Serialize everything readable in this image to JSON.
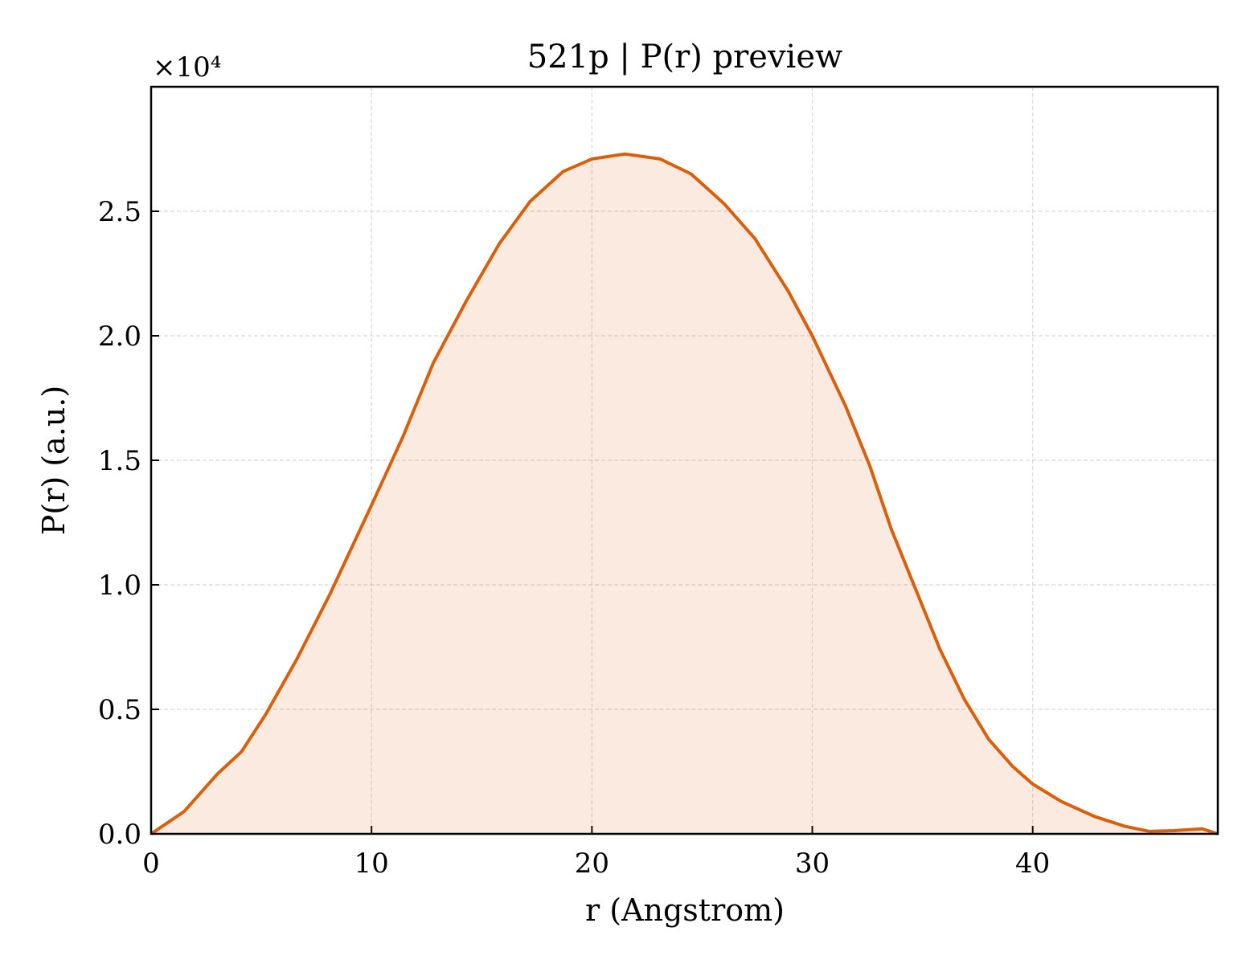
{
  "chart_data": {
    "type": "area",
    "title": "521p | P(r) preview",
    "x_label": "r (Angstrom)",
    "y_label": "P(r) (a.u.)",
    "y_offset_label": "×10⁴",
    "x": [
      0,
      1.5,
      3,
      4.1,
      5.2,
      6.6,
      8.1,
      10,
      11.4,
      12.8,
      14.3,
      15.8,
      17.2,
      18.7,
      20,
      21.5,
      23.1,
      24.5,
      26,
      27.4,
      28.9,
      30,
      31.5,
      32.6,
      33.6,
      34.7,
      35.8,
      36.9,
      38,
      39.1,
      40,
      41.3,
      42.8,
      44.2,
      45.3,
      46.4,
      47.7,
      48.4
    ],
    "series": [
      {
        "name": "P(r)",
        "color": "#d95f0a",
        "values": [
          0,
          0.09,
          0.24,
          0.33,
          0.48,
          0.7,
          0.96,
          1.32,
          1.59,
          1.89,
          2.14,
          2.37,
          2.54,
          2.66,
          2.71,
          2.73,
          2.71,
          2.65,
          2.53,
          2.39,
          2.18,
          2.0,
          1.72,
          1.48,
          1.22,
          0.98,
          0.74,
          0.54,
          0.38,
          0.27,
          0.2,
          0.13,
          0.07,
          0.03,
          0.01,
          0.013,
          0.02,
          0
        ]
      }
    ],
    "xlim": [
      0,
      48.4
    ],
    "ylim": [
      0,
      3.0
    ],
    "xticks": [
      0,
      10,
      20,
      30,
      40
    ],
    "yticks": [
      {
        "value": 0,
        "label": "0.0"
      },
      0.5,
      {
        "value": 1,
        "label": "1.0"
      },
      1.5,
      {
        "value": 2,
        "label": "2.0"
      },
      2.5
    ],
    "grid": true
  }
}
